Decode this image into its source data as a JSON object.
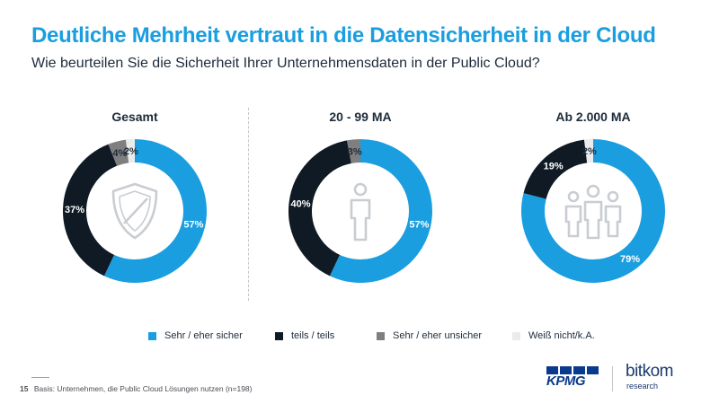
{
  "header": {
    "title": "Deutliche Mehrheit vertraut in die Datensicherheit in der Cloud",
    "subtitle": "Wie beurteilen Sie die Sicherheit Ihrer Unternehmensdaten in der Public Cloud?"
  },
  "chart_data": {
    "type": "pie",
    "categories": [
      "Sehr / eher sicher",
      "teils / teils",
      "Sehr / eher unsicher",
      "Weiß nicht/k.A."
    ],
    "colors": [
      "#1a9ee0",
      "#0f1a24",
      "#7f7f7f",
      "#ebebeb"
    ],
    "charts": [
      {
        "title": "Gesamt",
        "icon": "shield-icon",
        "values": [
          57,
          37,
          4,
          2
        ],
        "labels": [
          "57%",
          "37%",
          "4%",
          "2%"
        ]
      },
      {
        "title": "20 - 99 MA",
        "icon": "person-icon",
        "values": [
          57,
          40,
          3,
          0
        ],
        "labels": [
          "57%",
          "40%",
          "3%",
          ""
        ]
      },
      {
        "title": "Ab 2.000 MA",
        "icon": "group-icon",
        "values": [
          79,
          19,
          0,
          2
        ],
        "labels": [
          "79%",
          "19%",
          "",
          "2%"
        ]
      }
    ]
  },
  "footer": {
    "page_number": "15",
    "note": "Basis: Unternehmen, die Public Cloud Lösungen nutzen (n=198)"
  },
  "logos": {
    "kpmg": "KPMG",
    "bitkom": "bitkom",
    "bitkom_sub": "research"
  }
}
